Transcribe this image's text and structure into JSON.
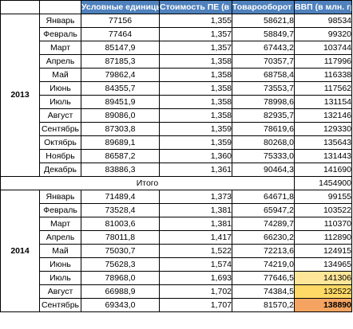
{
  "headers": {
    "units": "Условные единицы (ПЕ)",
    "cost": "Стоимость ПЕ (в млн. грн)",
    "turnover": "Товарооборот (в млн. грн)",
    "gdp": "ВВП (в млн. грн)"
  },
  "y2013": {
    "year": "2013",
    "rows": [
      {
        "month": "Январь",
        "units": "77156",
        "cost": "1,355",
        "turnover": "58621,8",
        "gdp": "98534"
      },
      {
        "month": "Февраль",
        "units": "77464",
        "cost": "1,357",
        "turnover": "58849,7",
        "gdp": "99320"
      },
      {
        "month": "Март",
        "units": "85147,9",
        "cost": "1,357",
        "turnover": "67443,2",
        "gdp": "103744"
      },
      {
        "month": "Апрель",
        "units": "87185,3",
        "cost": "1,358",
        "turnover": "70357,7",
        "gdp": "117996"
      },
      {
        "month": "Май",
        "units": "79862,4",
        "cost": "1,358",
        "turnover": "68758,4",
        "gdp": "116338"
      },
      {
        "month": "Июнь",
        "units": "84355,7",
        "cost": "1,358",
        "turnover": "73553,7",
        "gdp": "117562"
      },
      {
        "month": "Июль",
        "units": "89451,9",
        "cost": "1,358",
        "turnover": "78998,6",
        "gdp": "131154"
      },
      {
        "month": "Август",
        "units": "89086,0",
        "cost": "1,358",
        "turnover": "82935,7",
        "gdp": "132146"
      },
      {
        "month": "Сентябрь",
        "units": "87303,8",
        "cost": "1,359",
        "turnover": "78619,6",
        "gdp": "129330"
      },
      {
        "month": "Октябрь",
        "units": "89689,1",
        "cost": "1,359",
        "turnover": "80268,0",
        "gdp": "135643"
      },
      {
        "month": "Ноябрь",
        "units": "86587,2",
        "cost": "1,360",
        "turnover": "75333,0",
        "gdp": "131443"
      },
      {
        "month": "Декабрь",
        "units": "83886,3",
        "cost": "1,361",
        "turnover": "90464,3",
        "gdp": "141690"
      }
    ]
  },
  "total": {
    "label": "Итого",
    "gdp": "1454900"
  },
  "y2014": {
    "year": "2014",
    "rows": [
      {
        "month": "Январь",
        "units": "71489,4",
        "cost": "1,373",
        "turnover": "64671,8",
        "gdp": "99155"
      },
      {
        "month": "Февраль",
        "units": "73528,4",
        "cost": "1,381",
        "turnover": "65947,2",
        "gdp": "103522"
      },
      {
        "month": "Март",
        "units": "81003,6",
        "cost": "1,381",
        "turnover": "74289,7",
        "gdp": "110370"
      },
      {
        "month": "Апрель",
        "units": "78011,8",
        "cost": "1,417",
        "turnover": "66230,2",
        "gdp": "112890"
      },
      {
        "month": "Май",
        "units": "75030,7",
        "cost": "1,522",
        "turnover": "72213,6",
        "gdp": "124915"
      },
      {
        "month": "Июнь",
        "units": "75628,3",
        "cost": "1,574",
        "turnover": "74219,0",
        "gdp": "134965"
      },
      {
        "month": "Июль",
        "units": "78968,0",
        "cost": "1,693",
        "turnover": "77646,5",
        "gdp": "141306"
      },
      {
        "month": "Август",
        "units": "66988,9",
        "cost": "1,702",
        "turnover": "74384,5",
        "gdp": "132522"
      },
      {
        "month": "Сентябрь",
        "units": "69343,0",
        "cost": "1,707",
        "turnover": "81570,2",
        "gdp": "138890"
      }
    ]
  },
  "colors": {
    "header_bg": "#4f81bd",
    "highlight_light": "#ffe699",
    "highlight_mid": "#ffd966",
    "highlight_strong": "#f4a460"
  }
}
